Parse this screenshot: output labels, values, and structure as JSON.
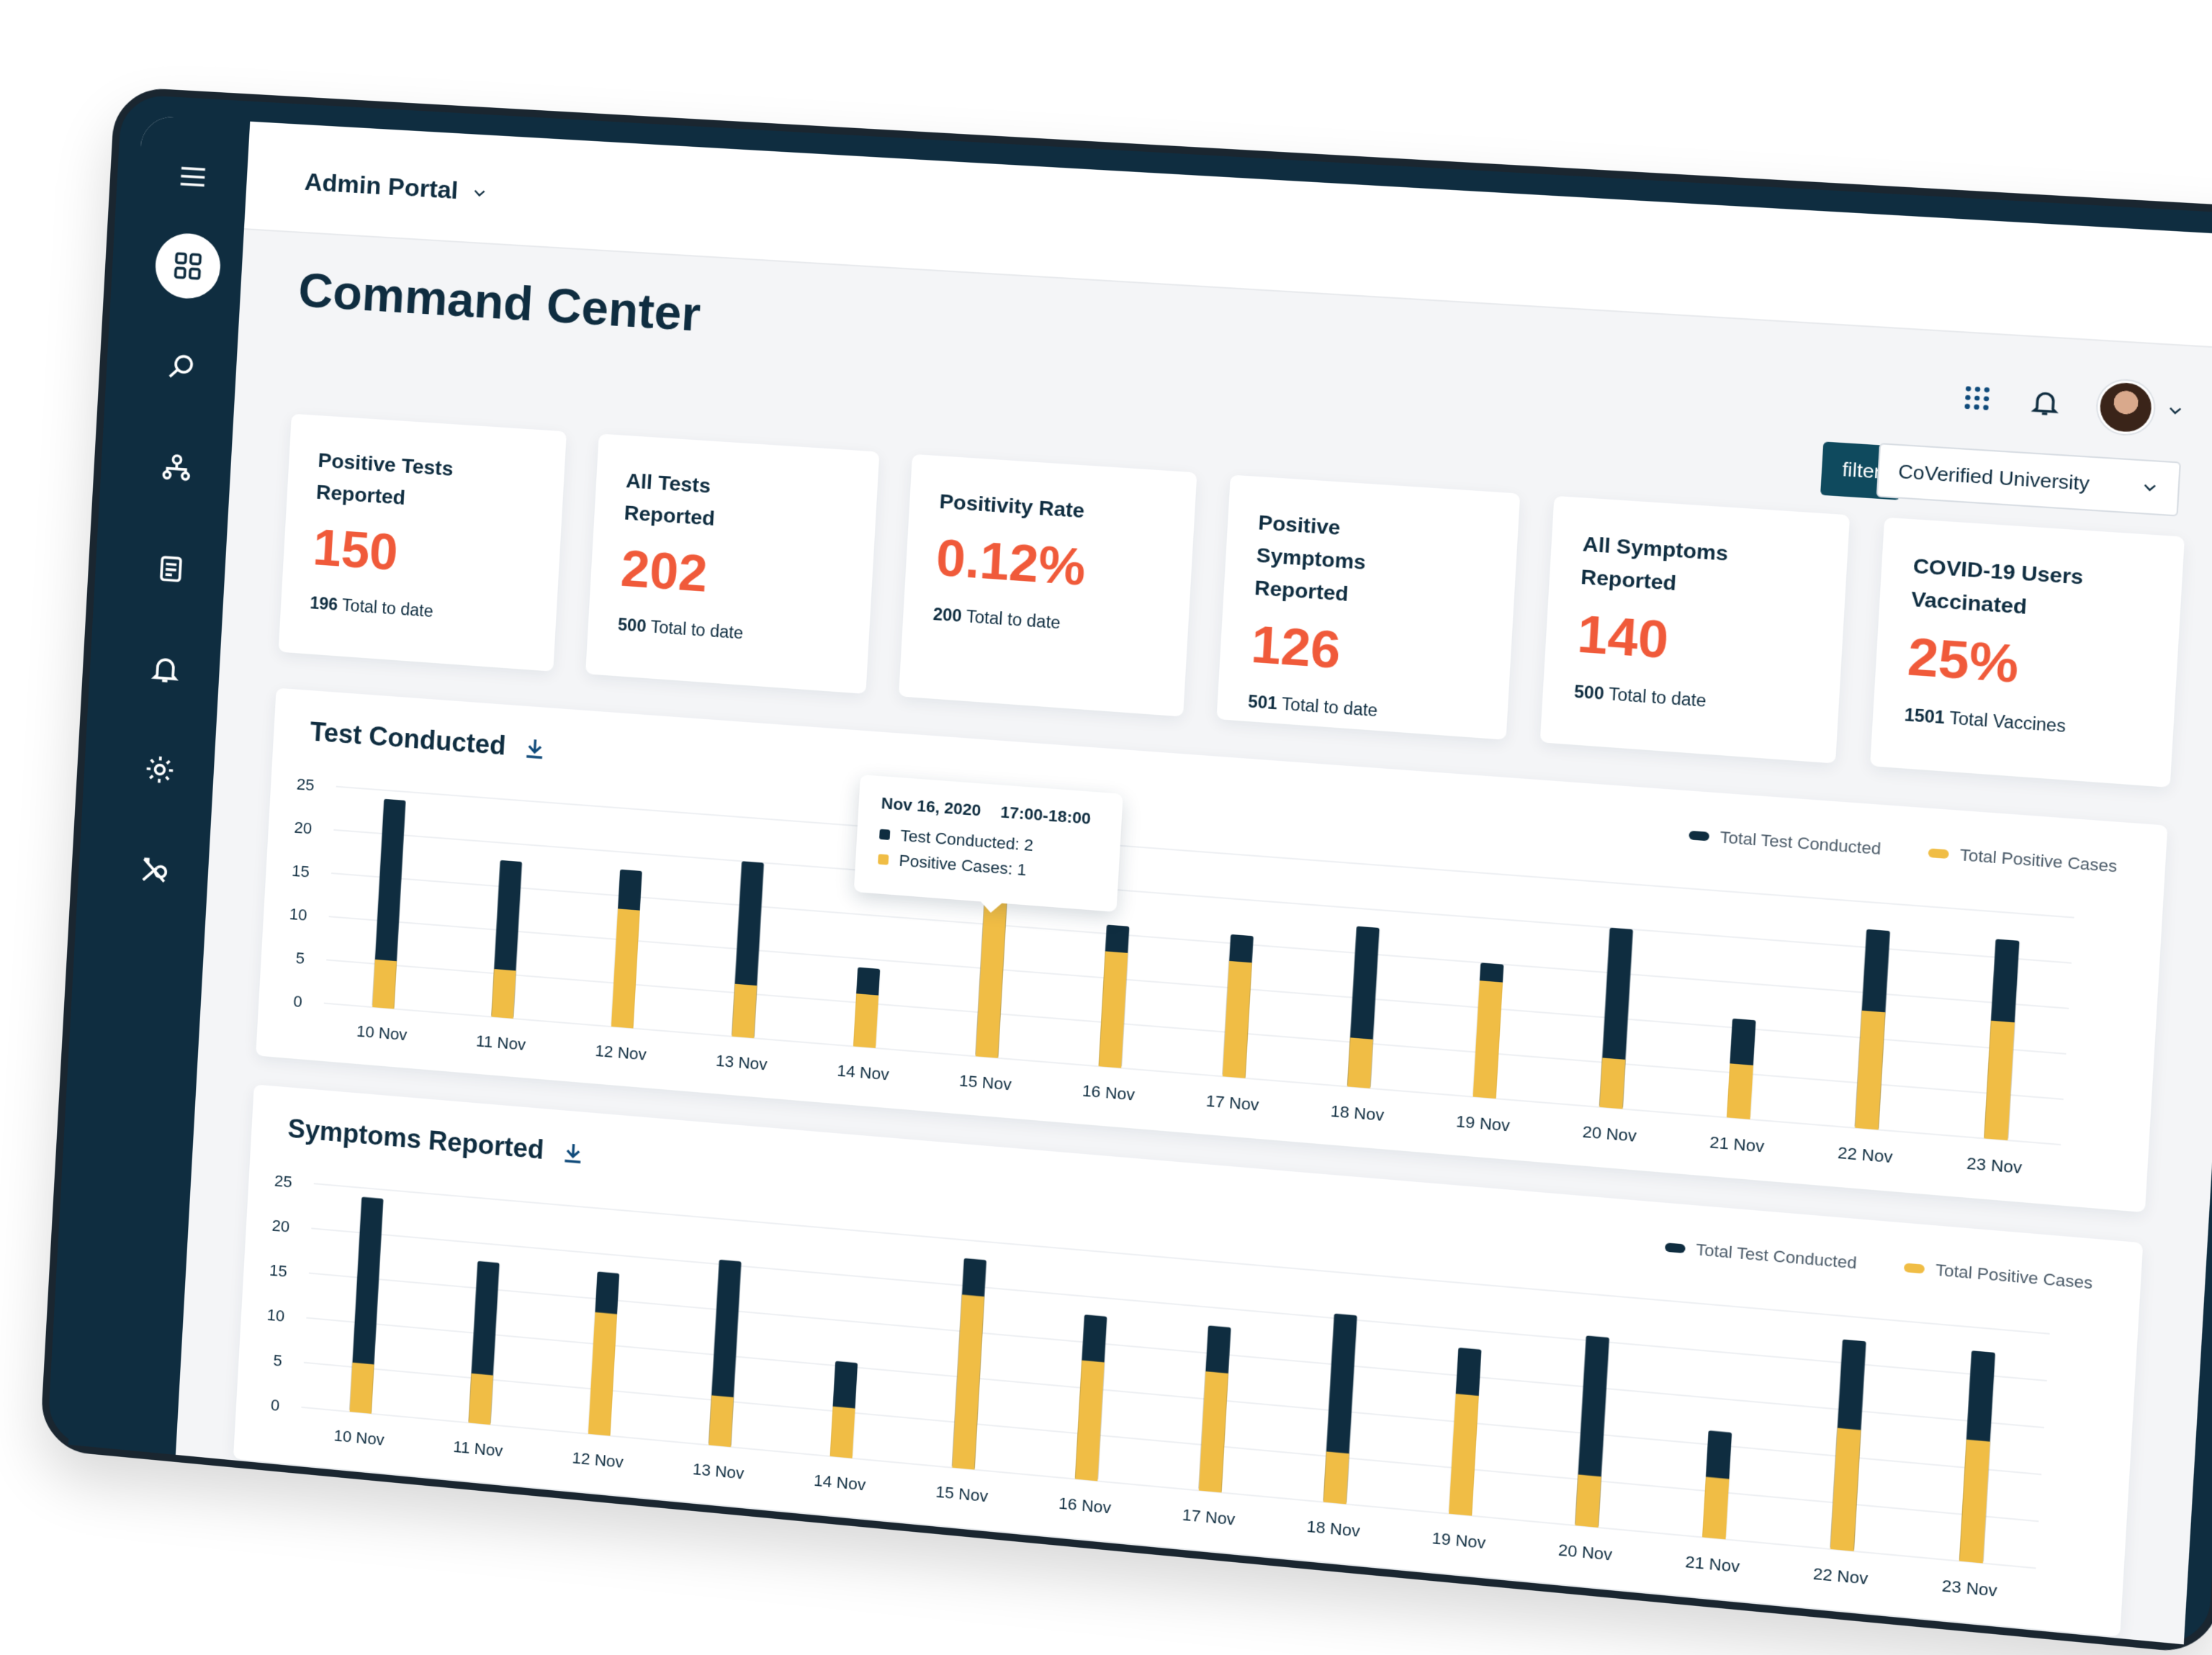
{
  "header": {
    "portal_label": "Admin Portal",
    "title": "Command Center"
  },
  "sidebar": {
    "icons": [
      "grid-icon",
      "search-icon",
      "org-chart-icon",
      "document-icon",
      "bell-icon",
      "gear-icon",
      "tools-icon"
    ]
  },
  "toolbar": {
    "filter_label": "filter",
    "select_value": "CoVerified University"
  },
  "cards": [
    {
      "label": "Positive Tests Reported",
      "value": "150",
      "foot_num": "196",
      "foot_text": "Total to date"
    },
    {
      "label": "All Tests Reported",
      "value": "202",
      "foot_num": "500",
      "foot_text": "Total to date"
    },
    {
      "label": "Positivity Rate",
      "value": "0.12%",
      "foot_num": "200",
      "foot_text": "Total to date"
    },
    {
      "label": "Positive Symptoms Reported",
      "value": "126",
      "foot_num": "501",
      "foot_text": "Total to date"
    },
    {
      "label": "All Symptoms Reported",
      "value": "140",
      "foot_num": "500",
      "foot_text": "Total to date"
    },
    {
      "label": "COVID-19 Users Vaccinated",
      "value": "25%",
      "foot_num": "1501",
      "foot_text": "Total Vaccines"
    }
  ],
  "tooltip": {
    "date": "Nov 16, 2020",
    "time": "17:00-18:00",
    "line1": "Test Conducted: 2",
    "line2": "Positive Cases: 1"
  },
  "colors": {
    "navy": "#0f2d40",
    "accent": "#f05a3a",
    "gold": "#f0bd45"
  },
  "chart_data": [
    {
      "type": "bar",
      "title": "Test Conducted",
      "categories": [
        "10 Nov",
        "11 Nov",
        "12 Nov",
        "13 Nov",
        "14 Nov",
        "15 Nov",
        "16 Nov",
        "17 Nov",
        "18 Nov",
        "19 Nov",
        "20 Nov",
        "21 Nov",
        "22 Nov",
        "23 Nov"
      ],
      "series": [
        {
          "name": "Total Test Conducted",
          "values": [
            24,
            18,
            18,
            20,
            9,
            20,
            16,
            16,
            18,
            15,
            20,
            11,
            22,
            22
          ]
        },
        {
          "name": "Total Positive Cases",
          "values": [
            5.5,
            5.5,
            13.5,
            6,
            6,
            19,
            13,
            13,
            5.5,
            13,
            5.5,
            6,
            13,
            13
          ]
        }
      ],
      "ylim": [
        0,
        25
      ],
      "yticks": [
        0,
        5,
        10,
        15,
        20,
        25
      ],
      "stacked_overlay": true
    },
    {
      "type": "bar",
      "title": "Symptoms Reported",
      "categories": [
        "10 Nov",
        "11 Nov",
        "12 Nov",
        "13 Nov",
        "14 Nov",
        "15 Nov",
        "16 Nov",
        "17 Nov",
        "18 Nov",
        "19 Nov",
        "20 Nov",
        "21 Nov",
        "22 Nov",
        "23 Nov"
      ],
      "series": [
        {
          "name": "Total Test Conducted",
          "values": [
            24,
            18,
            18,
            20.5,
            10.5,
            23,
            18,
            18,
            20.5,
            18,
            20.5,
            11.5,
            22.5,
            22.5
          ]
        },
        {
          "name": "Total Positive Cases",
          "values": [
            5.5,
            5.5,
            13.5,
            5.5,
            5.5,
            19,
            13,
            13,
            5.5,
            13,
            5.5,
            6.5,
            13,
            13
          ]
        }
      ],
      "ylim": [
        0,
        25
      ],
      "yticks": [
        0,
        5,
        10,
        15,
        20,
        25
      ],
      "stacked_overlay": true
    }
  ]
}
